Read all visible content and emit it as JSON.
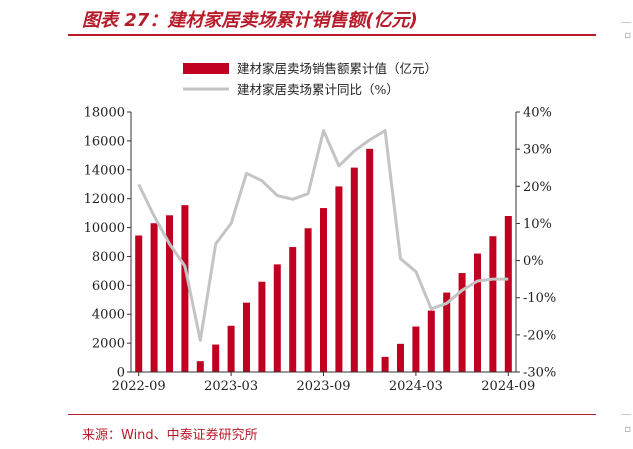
{
  "figure": {
    "title": "图表 27：建材家居卖场累计销售额(亿元)",
    "source": "来源：Wind、中泰证券研究所"
  },
  "colors": {
    "bar": "#c00020",
    "line": "#c4c4c4",
    "accent": "#b71c2b",
    "axis": "#333333"
  },
  "chart_data": {
    "type": "bar",
    "series": [
      {
        "name": "建材家居卖场销售额累计值（亿元）",
        "kind": "bar",
        "axis": "left",
        "values": [
          9450,
          10300,
          10850,
          11550,
          750,
          1900,
          3200,
          4800,
          6250,
          7450,
          8650,
          9950,
          11350,
          12850,
          14150,
          15450,
          1050,
          1950,
          3150,
          4250,
          5500,
          6850,
          8200,
          9400,
          10800
        ]
      },
      {
        "name": "建材家居卖场累计同比（%）",
        "kind": "line",
        "axis": "right",
        "values": [
          20.5,
          12,
          4.5,
          -1.5,
          -21.5,
          4.5,
          10,
          23.5,
          21.5,
          17.5,
          16.5,
          18,
          35,
          25.5,
          29.5,
          32.5,
          35,
          0.5,
          -3,
          -13,
          -11.5,
          -8,
          -5.5,
          -5,
          -5
        ]
      }
    ],
    "x_tick_labels": [
      "2022-09",
      "2023-03",
      "2023-09",
      "2024-03",
      "2024-09"
    ],
    "x_tick_indices": [
      0,
      6,
      12,
      18,
      24
    ],
    "left_axis": {
      "min": 0,
      "max": 18000,
      "step": 2000,
      "tick_labels": [
        "0",
        "2000",
        "4000",
        "6000",
        "8000",
        "10000",
        "12000",
        "14000",
        "16000",
        "18000"
      ]
    },
    "right_axis": {
      "min": -30,
      "max": 40,
      "step": 10,
      "tick_labels": [
        "-30%",
        "-20%",
        "-10%",
        "0%",
        "10%",
        "20%",
        "30%",
        "40%"
      ]
    },
    "legend_position": "top-center",
    "grid": false
  }
}
